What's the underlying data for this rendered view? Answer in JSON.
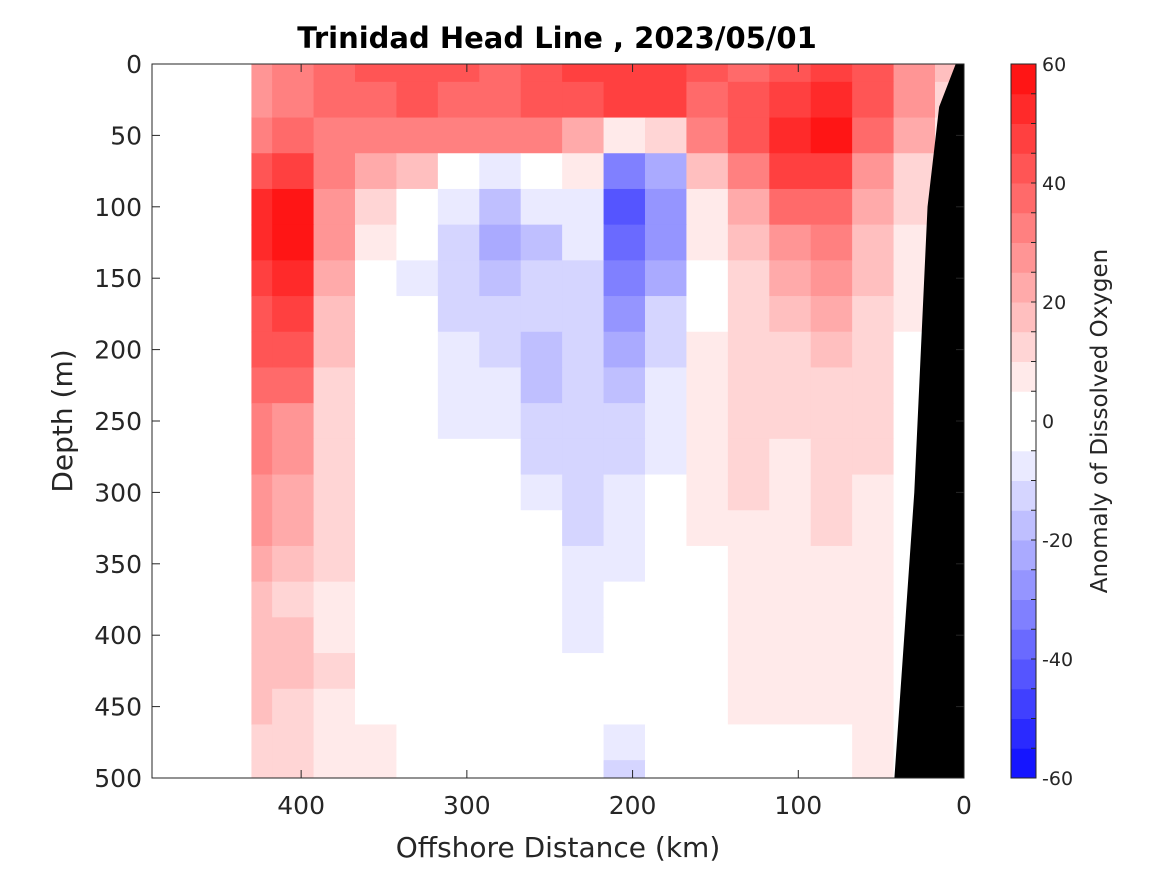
{
  "chart_data": {
    "type": "heatmap",
    "title": "Trinidad Head Line , 2023/05/01",
    "xlabel": "Offshore Distance (km)",
    "ylabel": "Depth (m)",
    "xlim": [
      490,
      0
    ],
    "ylim": [
      0,
      500
    ],
    "y_reversed": true,
    "x_reversed": true,
    "x_ticks": [
      400,
      300,
      200,
      100,
      0
    ],
    "y_ticks": [
      0,
      50,
      100,
      150,
      200,
      250,
      300,
      350,
      400,
      450,
      500
    ],
    "colorbar": {
      "label": "Anomaly of Dissolved Oxygen",
      "range": [
        -60,
        60
      ],
      "levels_step": 5,
      "ticks": [
        60,
        40,
        20,
        0,
        -20,
        -40,
        -60
      ]
    },
    "data_extent_km": [
      430,
      0
    ],
    "grid_x_km": [
      430,
      405,
      380,
      355,
      330,
      305,
      280,
      255,
      230,
      205,
      180,
      155,
      130,
      105,
      80,
      55,
      30,
      5
    ],
    "grid_depth_m": [
      0,
      25,
      50,
      75,
      100,
      125,
      150,
      175,
      200,
      225,
      250,
      275,
      300,
      325,
      350,
      375,
      400,
      425,
      450,
      475,
      500
    ],
    "anomaly_rows": [
      [
        28,
        32,
        35,
        40,
        42,
        40,
        38,
        40,
        45,
        48,
        48,
        40,
        38,
        42,
        45,
        40,
        28,
        15
      ],
      [
        28,
        32,
        35,
        38,
        40,
        38,
        38,
        40,
        42,
        45,
        45,
        38,
        40,
        48,
        50,
        42,
        25,
        12
      ],
      [
        30,
        35,
        30,
        30,
        32,
        30,
        30,
        30,
        20,
        5,
        10,
        32,
        40,
        52,
        58,
        35,
        20,
        8
      ],
      [
        40,
        45,
        30,
        20,
        15,
        2,
        -5,
        -2,
        5,
        -30,
        -20,
        15,
        30,
        45,
        48,
        25,
        12,
        5
      ],
      [
        50,
        55,
        28,
        10,
        2,
        -8,
        -15,
        -8,
        -5,
        -42,
        -25,
        5,
        20,
        35,
        38,
        20,
        10,
        3
      ],
      [
        52,
        55,
        25,
        5,
        -3,
        -12,
        -22,
        -15,
        -8,
        -38,
        -25,
        5,
        15,
        28,
        30,
        18,
        8,
        2
      ],
      [
        48,
        50,
        22,
        3,
        -5,
        -12,
        -18,
        -14,
        -10,
        -32,
        -20,
        2,
        10,
        22,
        25,
        15,
        8,
        2
      ],
      [
        42,
        45,
        18,
        0,
        -2,
        -10,
        -14,
        -12,
        -12,
        -26,
        -14,
        3,
        10,
        18,
        20,
        14,
        6,
        2
      ],
      [
        40,
        44,
        16,
        1,
        3,
        -6,
        -10,
        -16,
        -12,
        -22,
        -10,
        5,
        12,
        14,
        18,
        14,
        4,
        2
      ],
      [
        35,
        36,
        14,
        2,
        3,
        -6,
        -8,
        -16,
        -12,
        -18,
        -8,
        5,
        12,
        12,
        14,
        12,
        4,
        2
      ],
      [
        32,
        28,
        12,
        0,
        -4,
        -6,
        -8,
        -14,
        -12,
        -12,
        -6,
        5,
        10,
        10,
        12,
        10,
        3,
        2
      ],
      [
        30,
        26,
        12,
        2,
        -3,
        -4,
        -4,
        -10,
        -10,
        -10,
        -5,
        5,
        10,
        8,
        12,
        10,
        3,
        2
      ],
      [
        28,
        24,
        12,
        2,
        -2,
        -4,
        1,
        -6,
        -10,
        -8,
        -4,
        5,
        10,
        8,
        12,
        8,
        2,
        2
      ],
      [
        25,
        22,
        12,
        2,
        -1,
        -2,
        -2,
        -4,
        -10,
        -6,
        -3,
        5,
        8,
        8,
        10,
        8,
        3,
        2
      ],
      [
        20,
        18,
        10,
        2,
        -1,
        -2,
        -2,
        -3,
        -8,
        -5,
        -3,
        3,
        8,
        8,
        8,
        6,
        3,
        2
      ],
      [
        16,
        14,
        8,
        2,
        1,
        -1,
        -1,
        -2,
        -6,
        -4,
        -2,
        3,
        8,
        6,
        8,
        6,
        3,
        2
      ],
      [
        18,
        16,
        8,
        2,
        1,
        0,
        -1,
        -2,
        -5,
        -4,
        -2,
        2,
        8,
        6,
        8,
        6,
        3,
        2
      ],
      [
        18,
        16,
        10,
        3,
        1,
        0,
        0,
        2,
        -4,
        -4,
        -2,
        3,
        8,
        6,
        6,
        6,
        4,
        2
      ],
      [
        16,
        12,
        8,
        4,
        2,
        1,
        0,
        1,
        -3,
        -4,
        -3,
        2,
        6,
        5,
        5,
        5,
        4,
        2
      ],
      [
        14,
        10,
        8,
        6,
        3,
        1,
        0,
        1,
        -4,
        -8,
        -4,
        0,
        3,
        3,
        4,
        5,
        4,
        2
      ],
      [
        14,
        10,
        8,
        6,
        3,
        1,
        0,
        1,
        -4,
        -10,
        -4,
        0,
        3,
        3,
        4,
        5,
        4,
        2
      ]
    ],
    "bathymetry_mask": "black region near 0 km below the seafloor line"
  }
}
